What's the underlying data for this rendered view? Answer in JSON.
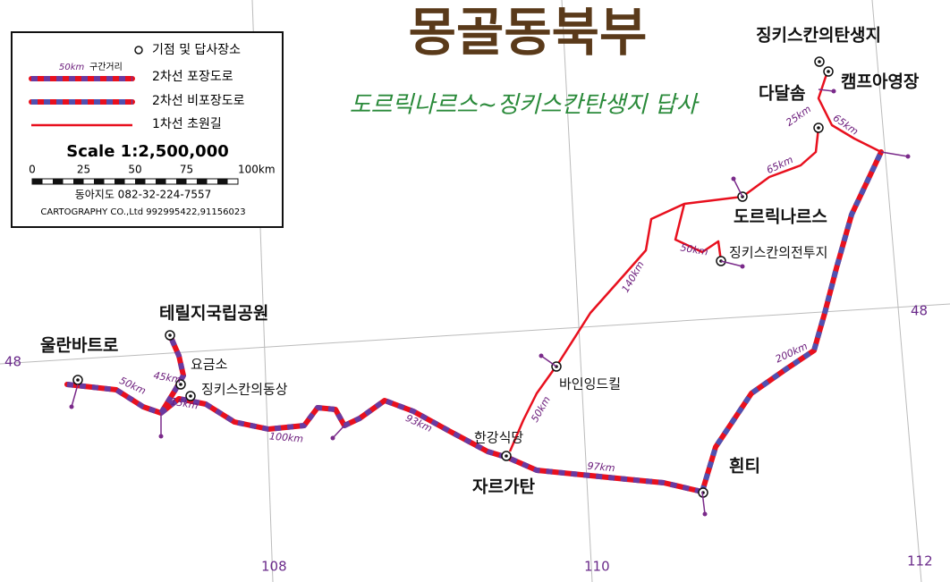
{
  "title": "몽골동북부",
  "subtitle": "도르릭나르스~징키스칸탄생지 답사",
  "legend": {
    "start_point": "기점 및 답사장소",
    "segment_distance": "50km",
    "segment_label": "구간거리",
    "paved_2lane": "2차선 포장도로",
    "unpaved_2lane": "2차선 비포장도로",
    "steppe_1lane": "1차선 초원길",
    "scale_title": "Scale 1:2,500,000",
    "scale_ticks": [
      "0",
      "25",
      "50",
      "75",
      "100km"
    ],
    "publisher": "동아지도   082-32-224-7557",
    "company": "CARTOGRAPHY CO.,Ltd  992995422,91156023"
  },
  "places": [
    "징키스칸의탄생지",
    "캠프아영장",
    "다달솜",
    "도르릭나르스",
    "징키스칸의전투지",
    "바인잉드킬",
    "한강식당",
    "자르가탄",
    "흰티",
    "테릴지국립공원",
    "울란바트로",
    "요금소",
    "징키스칸의동상"
  ],
  "distances": [
    "25km",
    "65km",
    "65km",
    "140km",
    "50km",
    "200km",
    "50km",
    "93km",
    "97km",
    "100km",
    "50km",
    "45km",
    "15km"
  ],
  "grid_labels": [
    "48",
    "48",
    "108",
    "110",
    "112"
  ]
}
